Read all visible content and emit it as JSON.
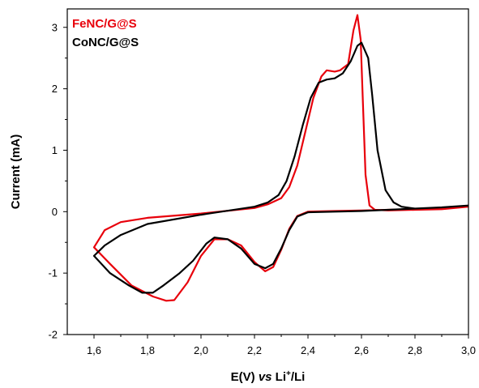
{
  "chart_data": {
    "type": "line",
    "xlabel": "E(V) vs Li+/Li",
    "xlabel_parts": {
      "prefix": "E(V) ",
      "italic": "vs",
      "main": " Li",
      "sup": "+",
      "suffix": "/Li"
    },
    "ylabel": "Current (mA)",
    "xlim": [
      1.5,
      3.0
    ],
    "ylim": [
      -2.0,
      3.3
    ],
    "xticks": [
      1.6,
      1.8,
      2.0,
      2.2,
      2.4,
      2.6,
      2.8,
      3.0
    ],
    "xtick_labels": [
      "1,6",
      "1,8",
      "2,0",
      "2,2",
      "2,4",
      "2,6",
      "2,8",
      "3,0"
    ],
    "yticks": [
      -2,
      -1,
      0,
      1,
      2,
      3
    ],
    "ytick_labels": [
      "-2",
      "-1",
      "0",
      "1",
      "2",
      "3"
    ],
    "grid": false,
    "legend_position": "top-left",
    "series": [
      {
        "name": "FeNC/G@S",
        "color": "#e8000b",
        "points": [
          [
            3.0,
            0.08
          ],
          [
            2.9,
            0.04
          ],
          [
            2.8,
            0.03
          ],
          [
            2.7,
            0.02
          ],
          [
            2.65,
            0.03
          ],
          [
            2.63,
            0.1
          ],
          [
            2.615,
            0.6
          ],
          [
            2.605,
            1.8
          ],
          [
            2.597,
            2.8
          ],
          [
            2.585,
            3.2
          ],
          [
            2.57,
            2.95
          ],
          [
            2.55,
            2.4
          ],
          [
            2.52,
            2.3
          ],
          [
            2.5,
            2.28
          ],
          [
            2.47,
            2.3
          ],
          [
            2.45,
            2.2
          ],
          [
            2.42,
            1.85
          ],
          [
            2.39,
            1.3
          ],
          [
            2.36,
            0.75
          ],
          [
            2.33,
            0.4
          ],
          [
            2.3,
            0.22
          ],
          [
            2.25,
            0.12
          ],
          [
            2.2,
            0.06
          ],
          [
            2.0,
            -0.03
          ],
          [
            1.8,
            -0.1
          ],
          [
            1.7,
            -0.17
          ],
          [
            1.64,
            -0.3
          ],
          [
            1.6,
            -0.58
          ],
          [
            1.66,
            -0.85
          ],
          [
            1.74,
            -1.2
          ],
          [
            1.82,
            -1.38
          ],
          [
            1.87,
            -1.45
          ],
          [
            1.9,
            -1.44
          ],
          [
            1.95,
            -1.15
          ],
          [
            2.0,
            -0.72
          ],
          [
            2.05,
            -0.45
          ],
          [
            2.1,
            -0.45
          ],
          [
            2.15,
            -0.55
          ],
          [
            2.2,
            -0.82
          ],
          [
            2.24,
            -0.97
          ],
          [
            2.27,
            -0.9
          ],
          [
            2.3,
            -0.62
          ],
          [
            2.33,
            -0.28
          ],
          [
            2.36,
            -0.07
          ],
          [
            2.4,
            0.0
          ],
          [
            2.5,
            0.01
          ],
          [
            2.6,
            0.02
          ],
          [
            2.7,
            0.03
          ],
          [
            2.8,
            0.04
          ],
          [
            2.9,
            0.05
          ],
          [
            3.0,
            0.08
          ]
        ]
      },
      {
        "name": "CoNC/G@S",
        "color": "#000000",
        "points": [
          [
            3.0,
            0.1
          ],
          [
            2.9,
            0.07
          ],
          [
            2.8,
            0.05
          ],
          [
            2.75,
            0.08
          ],
          [
            2.72,
            0.15
          ],
          [
            2.69,
            0.35
          ],
          [
            2.66,
            1.0
          ],
          [
            2.64,
            1.9
          ],
          [
            2.625,
            2.5
          ],
          [
            2.6,
            2.75
          ],
          [
            2.585,
            2.7
          ],
          [
            2.56,
            2.45
          ],
          [
            2.53,
            2.25
          ],
          [
            2.5,
            2.17
          ],
          [
            2.47,
            2.15
          ],
          [
            2.44,
            2.1
          ],
          [
            2.41,
            1.85
          ],
          [
            2.38,
            1.4
          ],
          [
            2.35,
            0.9
          ],
          [
            2.32,
            0.5
          ],
          [
            2.29,
            0.27
          ],
          [
            2.25,
            0.15
          ],
          [
            2.2,
            0.08
          ],
          [
            2.0,
            -0.05
          ],
          [
            1.8,
            -0.2
          ],
          [
            1.7,
            -0.38
          ],
          [
            1.64,
            -0.55
          ],
          [
            1.6,
            -0.72
          ],
          [
            1.66,
            -1.0
          ],
          [
            1.73,
            -1.2
          ],
          [
            1.78,
            -1.32
          ],
          [
            1.82,
            -1.32
          ],
          [
            1.86,
            -1.2
          ],
          [
            1.92,
            -1.0
          ],
          [
            1.97,
            -0.8
          ],
          [
            2.02,
            -0.52
          ],
          [
            2.05,
            -0.42
          ],
          [
            2.1,
            -0.45
          ],
          [
            2.15,
            -0.6
          ],
          [
            2.2,
            -0.85
          ],
          [
            2.24,
            -0.92
          ],
          [
            2.27,
            -0.85
          ],
          [
            2.3,
            -0.6
          ],
          [
            2.33,
            -0.3
          ],
          [
            2.36,
            -0.08
          ],
          [
            2.4,
            -0.01
          ],
          [
            2.5,
            0.0
          ],
          [
            2.6,
            0.01
          ],
          [
            2.7,
            0.03
          ],
          [
            2.8,
            0.05
          ],
          [
            2.9,
            0.07
          ],
          [
            3.0,
            0.1
          ]
        ]
      }
    ]
  }
}
